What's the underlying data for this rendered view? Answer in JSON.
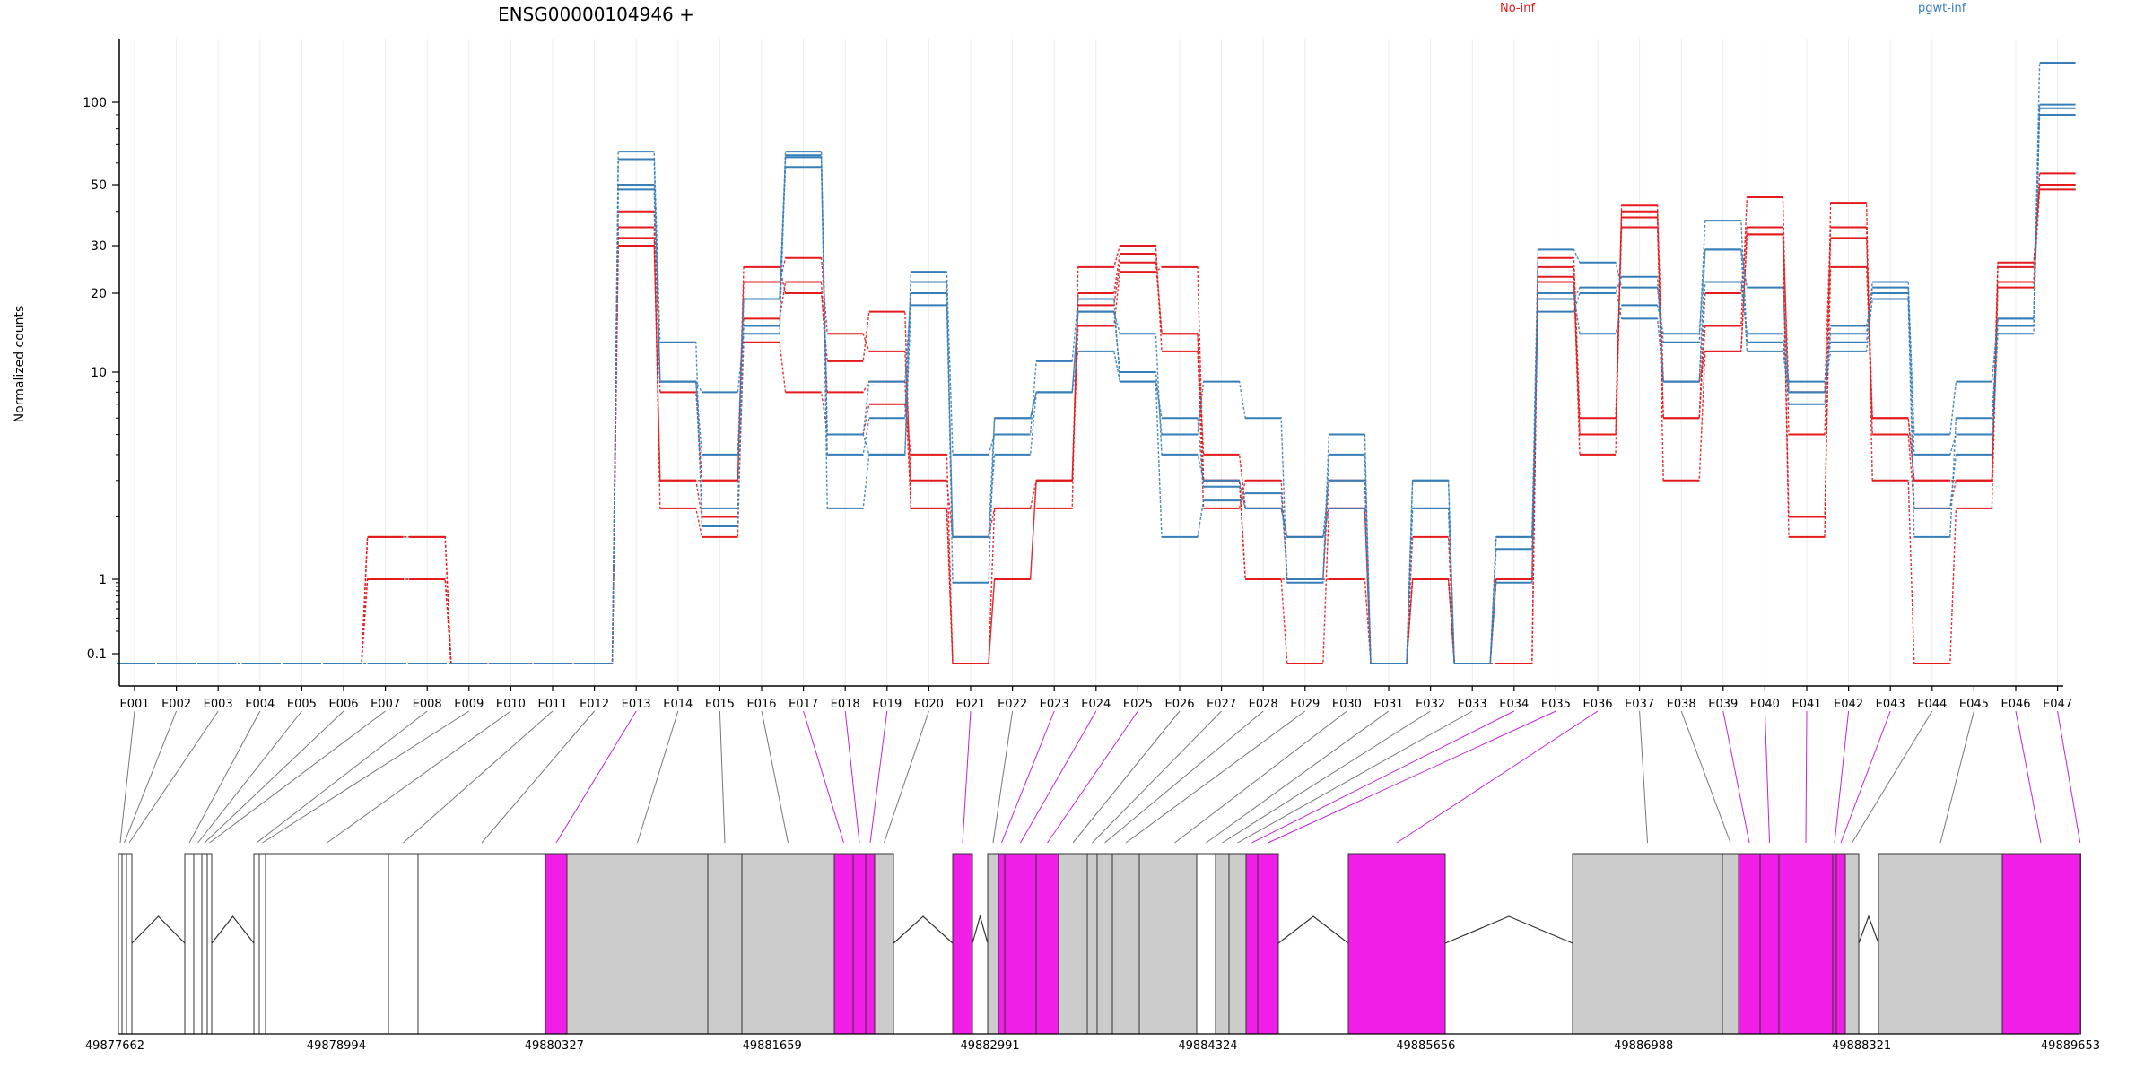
{
  "title": "ENSG00000104946 +",
  "legend": [
    {
      "label": "No-inf",
      "color": "#E41A1C"
    },
    {
      "label": "pgwt-inf",
      "color": "#377EB8"
    }
  ],
  "ylabel": "Normalized counts",
  "colors": {
    "red": "#E41A1C",
    "blue": "#377EB8",
    "magenta": "#F01EE6",
    "gray": "#CCCCCC"
  },
  "chart_data": {
    "type": "line",
    "scale": "log",
    "yticks": [
      {
        "value": 0.1,
        "label": "0.1"
      },
      {
        "value": 1,
        "label": "1"
      },
      {
        "value": 10,
        "label": "10"
      },
      {
        "value": 20,
        "label": "20"
      },
      {
        "value": 30,
        "label": "30"
      },
      {
        "value": 50,
        "label": "50"
      },
      {
        "value": 100,
        "label": "100"
      }
    ],
    "categories": [
      "E001",
      "E002",
      "E003",
      "E004",
      "E005",
      "E006",
      "E007",
      "E008",
      "E009",
      "E010",
      "E011",
      "E012",
      "E013",
      "E014",
      "E015",
      "E016",
      "E017",
      "E018",
      "E019",
      "E020",
      "E021",
      "E022",
      "E023",
      "E024",
      "E025",
      "E026",
      "E027",
      "E028",
      "E029",
      "E030",
      "E031",
      "E032",
      "E033",
      "E034",
      "E035",
      "E036",
      "E037",
      "E038",
      "E039",
      "E040",
      "E041",
      "E042",
      "E043",
      "E044",
      "E045",
      "E046",
      "E047"
    ],
    "series": [
      {
        "group": "No-inf",
        "values": [
          0.08,
          0.08,
          0.08,
          0.08,
          0.08,
          0.08,
          1,
          1,
          0.08,
          0.08,
          0.08,
          0.08,
          30,
          3,
          2,
          13,
          8,
          5,
          7,
          4,
          0.08,
          1,
          3,
          15,
          24,
          25,
          3,
          1,
          1,
          1,
          0.08,
          1,
          0.08,
          0.08,
          22,
          5,
          40,
          9,
          12,
          33,
          2,
          25,
          6,
          3,
          3,
          22,
          55
        ]
      },
      {
        "group": "No-inf",
        "values": [
          0.08,
          0.08,
          0.08,
          0.08,
          0.08,
          0.08,
          1.6,
          1.6,
          0.08,
          0.08,
          0.08,
          0.08,
          35,
          2.2,
          1.6,
          16,
          22,
          8,
          9,
          2.2,
          0.08,
          2.2,
          3,
          20,
          28,
          14,
          4,
          2.2,
          1.6,
          2.2,
          0.08,
          1.6,
          0.08,
          0.08,
          25,
          5,
          35,
          6,
          15,
          45,
          5,
          32,
          5,
          2.2,
          3,
          26,
          50
        ]
      },
      {
        "group": "No-inf",
        "values": [
          0.08,
          0.08,
          0.08,
          0.08,
          0.08,
          0.08,
          1.6,
          1.6,
          0.08,
          0.08,
          0.08,
          0.08,
          40,
          8,
          3,
          22,
          27,
          14,
          12,
          3,
          1.6,
          2.2,
          2.2,
          25,
          30,
          12,
          2.2,
          3,
          1,
          3,
          0.08,
          1,
          0.08,
          1,
          27,
          6,
          38,
          6,
          20,
          35,
          8,
          35,
          6,
          3,
          3,
          25,
          50
        ]
      },
      {
        "group": "No-inf",
        "values": [
          0.08,
          0.08,
          0.08,
          0.08,
          0.08,
          0.08,
          1,
          1,
          0.08,
          0.08,
          0.08,
          0.08,
          32,
          3,
          3,
          25,
          20,
          11,
          17,
          2.2,
          0.08,
          1,
          3,
          18,
          26,
          14,
          3,
          1,
          0.08,
          2.2,
          0.08,
          1,
          0.08,
          1,
          23,
          4,
          42,
          3,
          12,
          33,
          1.6,
          43,
          3,
          0.08,
          2.2,
          21,
          48
        ]
      },
      {
        "group": "pgwt-inf",
        "values": [
          0.08,
          0.08,
          0.08,
          0.08,
          0.08,
          0.08,
          0.08,
          0.08,
          0.08,
          0.08,
          0.08,
          0.08,
          48,
          9,
          2.2,
          19,
          58,
          5,
          4,
          18,
          1.6,
          6,
          8,
          17,
          14,
          4,
          3,
          2.2,
          1.6,
          2.2,
          0.08,
          2.2,
          0.08,
          1.6,
          17,
          20,
          23,
          9,
          22,
          14,
          7,
          15,
          20,
          2.2,
          4,
          14,
          90
        ]
      },
      {
        "group": "pgwt-inf",
        "values": [
          0.08,
          0.08,
          0.08,
          0.08,
          0.08,
          0.08,
          0.08,
          0.08,
          0.08,
          0.08,
          0.08,
          0.08,
          62,
          9,
          4,
          19,
          64,
          4,
          6,
          22,
          0.9,
          6,
          8,
          17,
          10,
          5,
          9,
          6,
          0.9,
          4,
          0.08,
          2.2,
          0.08,
          0.9,
          20,
          14,
          18,
          14,
          29,
          21,
          8,
          14,
          21,
          4,
          5,
          16,
          95
        ]
      },
      {
        "group": "pgwt-inf",
        "values": [
          0.08,
          0.08,
          0.08,
          0.08,
          0.08,
          0.08,
          0.08,
          0.08,
          0.08,
          0.08,
          0.08,
          0.08,
          66,
          13,
          1.8,
          15,
          66,
          2.2,
          4,
          24,
          4,
          5,
          11,
          19,
          9,
          1.6,
          2.4,
          2.6,
          1,
          5,
          0.08,
          3,
          0.08,
          1.6,
          29,
          26,
          21,
          13,
          37,
          13,
          9,
          13,
          22,
          5,
          9,
          16,
          98
        ]
      },
      {
        "group": "pgwt-inf",
        "values": [
          0.08,
          0.08,
          0.08,
          0.08,
          0.08,
          0.08,
          0.08,
          0.08,
          0.08,
          0.08,
          0.08,
          0.08,
          50,
          9,
          8,
          14,
          63,
          5,
          9,
          20,
          1.6,
          4,
          8,
          12,
          9,
          6,
          2.8,
          2.2,
          1.6,
          3,
          0.08,
          3,
          0.08,
          1.4,
          19,
          21,
          16,
          9,
          29,
          12,
          8,
          12,
          19,
          1.6,
          6,
          15,
          132
        ]
      }
    ]
  },
  "gene_model": {
    "coordinates": [
      "49877662",
      "49878994",
      "49880327",
      "49881659",
      "49882991",
      "49884324",
      "49885656",
      "49886988",
      "49888321",
      "49889653"
    ],
    "exons": [
      {
        "type": "white"
      },
      {
        "type": "white"
      },
      {
        "type": "white"
      },
      {
        "type": "white"
      },
      {
        "type": "white"
      },
      {
        "type": "white"
      },
      {
        "type": "white"
      },
      {
        "type": "white"
      },
      {
        "type": "white"
      },
      {
        "type": "white"
      },
      {
        "type": "white"
      },
      {
        "type": "white"
      },
      {
        "type": "magenta"
      },
      {
        "type": "gray"
      },
      {
        "type": "gray"
      },
      {
        "type": "gray"
      },
      {
        "type": "magenta"
      },
      {
        "type": "magenta"
      },
      {
        "type": "magenta"
      },
      {
        "type": "gray"
      },
      {
        "type": "magenta"
      },
      {
        "type": "gray"
      },
      {
        "type": "magenta"
      },
      {
        "type": "magenta"
      },
      {
        "type": "magenta"
      },
      {
        "type": "gray"
      },
      {
        "type": "gray"
      },
      {
        "type": "gray"
      },
      {
        "type": "gray"
      },
      {
        "type": "gray"
      },
      {
        "type": "white"
      },
      {
        "type": "gray"
      },
      {
        "type": "gray"
      },
      {
        "type": "magenta"
      },
      {
        "type": "magenta"
      },
      {
        "type": "magenta"
      },
      {
        "type": "gray"
      },
      {
        "type": "gray"
      },
      {
        "type": "magenta"
      },
      {
        "type": "magenta"
      },
      {
        "type": "magenta"
      },
      {
        "type": "magenta"
      },
      {
        "type": "magenta"
      },
      {
        "type": "gray"
      },
      {
        "type": "gray"
      },
      {
        "type": "magenta"
      },
      {
        "type": "magenta"
      }
    ]
  }
}
